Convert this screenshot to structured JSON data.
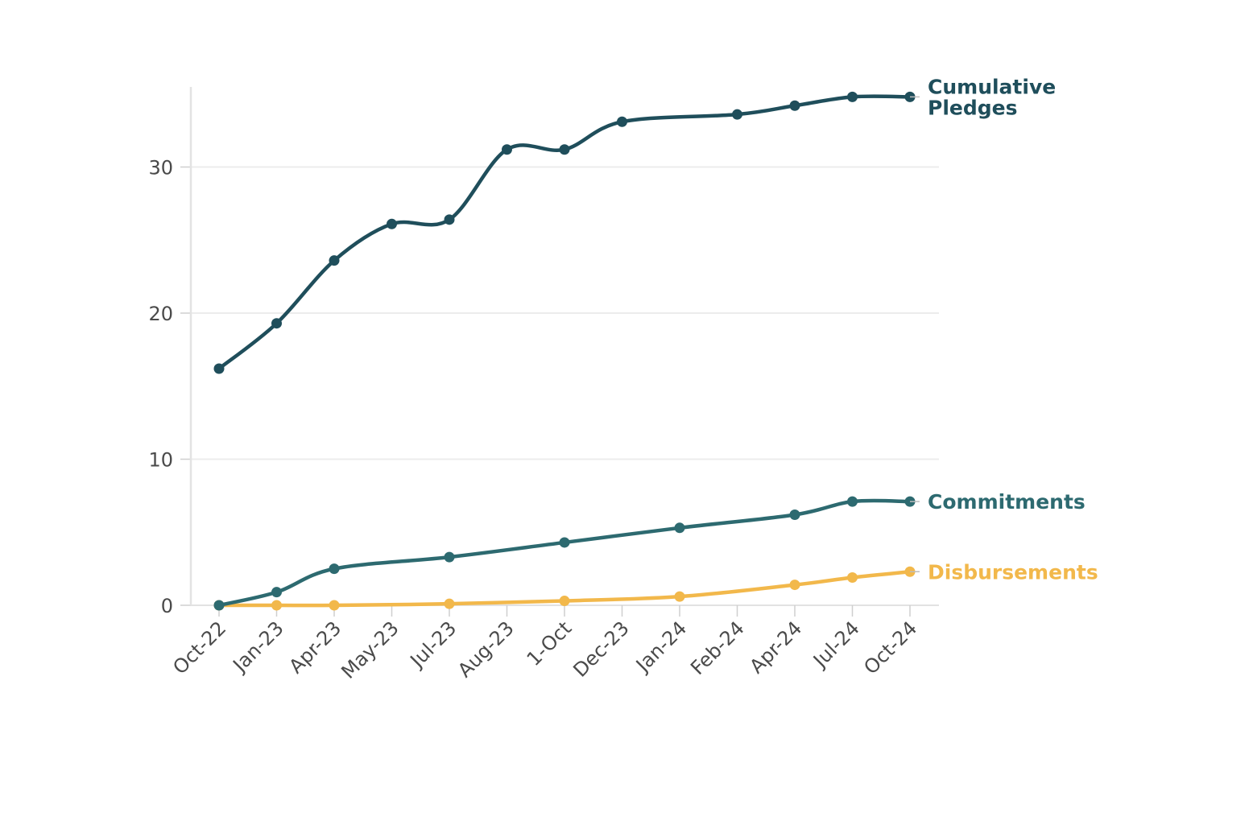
{
  "chart_data": {
    "type": "line",
    "title": "",
    "xlabel": "",
    "ylabel": "",
    "categories": [
      "Oct-22",
      "Jan-23",
      "Apr-23",
      "May-23",
      "Jul-23",
      "Aug-23",
      "1-Oct",
      "Dec-23",
      "Jan-24",
      "Feb-24",
      "Apr-24",
      "Jul-24",
      "Oct-24"
    ],
    "ylim": [
      0,
      35
    ],
    "yticks": [
      0,
      10,
      20,
      30
    ],
    "grid": "horizontal",
    "legend": "direct labels at line ends (right)",
    "series": [
      {
        "name": "Cumulative Pledges",
        "label_lines": [
          "Cumulative",
          "Pledges"
        ],
        "color": "#1f4e5b",
        "points": [
          [
            0,
            16.2
          ],
          [
            1,
            19.3
          ],
          [
            2,
            23.6
          ],
          [
            3,
            26.1
          ],
          [
            4,
            26.4
          ],
          [
            5,
            31.2
          ],
          [
            6,
            31.2
          ],
          [
            7,
            33.1
          ],
          [
            9,
            33.6
          ],
          [
            10,
            34.2
          ],
          [
            11,
            34.8
          ],
          [
            12,
            34.8
          ]
        ]
      },
      {
        "name": "Commitments",
        "label_lines": [
          "Commitments"
        ],
        "color": "#2d6a70",
        "points": [
          [
            0,
            0
          ],
          [
            1,
            0.9
          ],
          [
            2,
            2.5
          ],
          [
            4,
            3.3
          ],
          [
            6,
            4.3
          ],
          [
            8,
            5.3
          ],
          [
            10,
            6.2
          ],
          [
            11,
            7.1
          ],
          [
            12,
            7.1
          ]
        ]
      },
      {
        "name": "Disbursements",
        "label_lines": [
          "Disbursements"
        ],
        "color": "#f2b84b",
        "points": [
          [
            0,
            0
          ],
          [
            1,
            0
          ],
          [
            2,
            0
          ],
          [
            4,
            0.1
          ],
          [
            6,
            0.3
          ],
          [
            8,
            0.6
          ],
          [
            10,
            1.4
          ],
          [
            11,
            1.9
          ],
          [
            12,
            2.3
          ]
        ]
      }
    ]
  }
}
